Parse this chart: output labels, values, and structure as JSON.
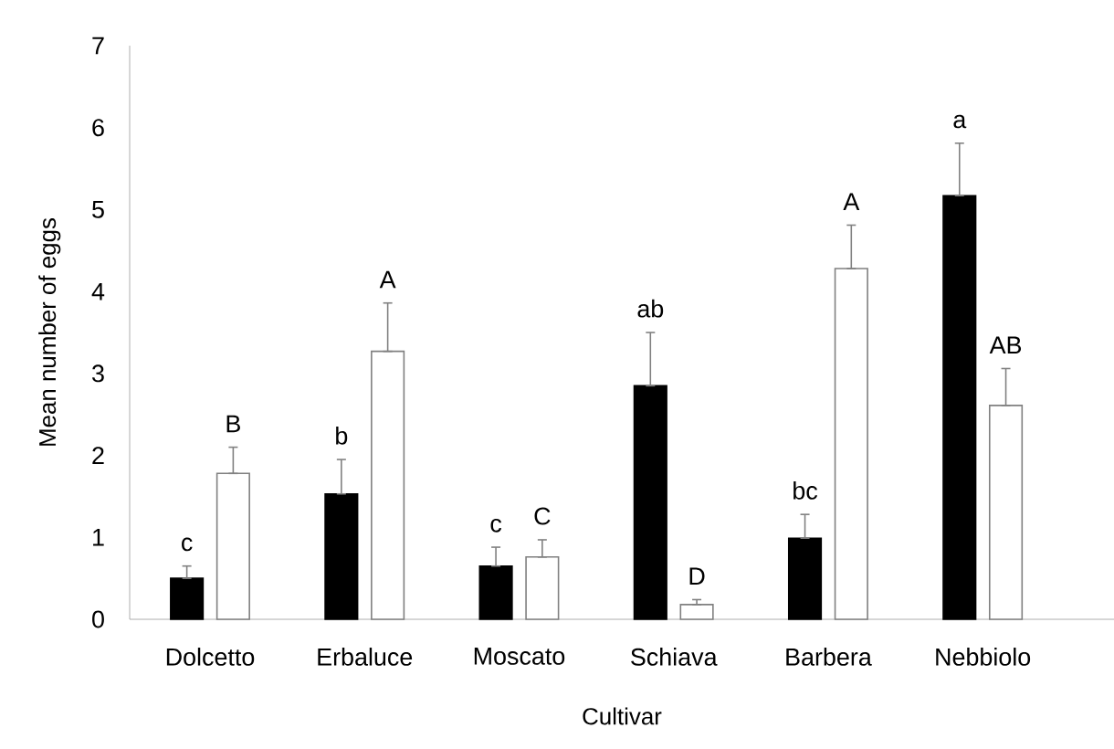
{
  "chart_data": {
    "type": "bar",
    "xlabel": "Cultivar",
    "ylabel": "Mean number of eggs",
    "categories": [
      "Dolcetto",
      "Erbaluce",
      "Moscato",
      "Schiava",
      "Barbera",
      "Nebbiolo"
    ],
    "series": [
      {
        "color": "#000000",
        "values": [
          0.5,
          1.53,
          0.65,
          2.85,
          0.99,
          5.17
        ],
        "errors": [
          [
            0.5,
            0.65
          ],
          [
            1.53,
            1.95
          ],
          [
            0.65,
            0.88
          ],
          [
            2.85,
            3.5
          ],
          [
            0.99,
            1.28
          ],
          [
            5.17,
            5.81
          ]
        ],
        "value_labels": [
          "c",
          "b",
          "c",
          "ab",
          "bc",
          "a"
        ]
      },
      {
        "color": "#ffffff",
        "values": [
          1.78,
          3.27,
          0.76,
          0.18,
          4.28,
          2.61
        ],
        "errors": [
          [
            1.78,
            2.1
          ],
          [
            3.27,
            3.86
          ],
          [
            0.76,
            0.97
          ],
          [
            0.18,
            0.24
          ],
          [
            4.28,
            4.81
          ],
          [
            2.61,
            3.06
          ]
        ],
        "value_labels": [
          "B",
          "A",
          "C",
          "D",
          "A",
          "AB"
        ]
      }
    ],
    "ylim": [
      0,
      7
    ],
    "yticks": [
      0,
      1,
      2,
      3,
      4,
      5,
      6,
      7
    ],
    "grid": false
  }
}
